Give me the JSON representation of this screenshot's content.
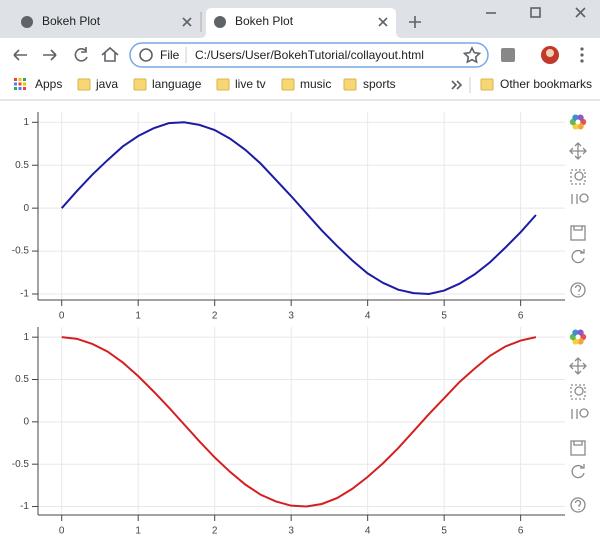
{
  "tabs": [
    {
      "title": "Bokeh Plot"
    },
    {
      "title": "Bokeh Plot"
    }
  ],
  "address_bar": {
    "scheme": "File",
    "url": "C:/Users/User/BokehTutorial/collayout.html"
  },
  "bookmarks": [
    "Apps",
    "java",
    "language",
    "live tv",
    "music",
    "sports"
  ],
  "other_bookmarks": "Other bookmarks",
  "chart_data": [
    {
      "type": "line",
      "x": [
        0,
        0.2,
        0.4,
        0.6,
        0.8,
        1.0,
        1.2,
        1.4,
        1.6,
        1.8,
        2.0,
        2.2,
        2.4,
        2.6,
        2.8,
        3.0,
        3.2,
        3.4,
        3.6,
        3.8,
        4.0,
        4.2,
        4.4,
        4.6,
        4.8,
        5.0,
        5.2,
        5.4,
        5.6,
        5.8,
        6.0,
        6.2
      ],
      "series": [
        {
          "color": "#1c1ca3",
          "values": [
            0,
            0.2,
            0.39,
            0.56,
            0.72,
            0.84,
            0.93,
            0.99,
            1.0,
            0.97,
            0.91,
            0.81,
            0.68,
            0.52,
            0.33,
            0.14,
            -0.06,
            -0.26,
            -0.44,
            -0.61,
            -0.76,
            -0.87,
            -0.95,
            -0.99,
            -1.0,
            -0.96,
            -0.88,
            -0.77,
            -0.63,
            -0.46,
            -0.28,
            -0.08
          ]
        }
      ],
      "xlim": [
        -0.31,
        6.58
      ],
      "ylim": [
        -1.07,
        1.12
      ],
      "xticks": [
        0,
        1,
        2,
        3,
        4,
        5,
        6
      ],
      "yticks": [
        -1,
        -0.5,
        0,
        0.5,
        1
      ],
      "grid": true
    },
    {
      "type": "line",
      "x": [
        0,
        0.2,
        0.4,
        0.6,
        0.8,
        1.0,
        1.2,
        1.4,
        1.6,
        1.8,
        2.0,
        2.2,
        2.4,
        2.6,
        2.8,
        3.0,
        3.2,
        3.4,
        3.6,
        3.8,
        4.0,
        4.2,
        4.4,
        4.6,
        4.8,
        5.0,
        5.2,
        5.4,
        5.6,
        5.8,
        6.0,
        6.2
      ],
      "series": [
        {
          "color": "#d42020",
          "values": [
            1,
            0.98,
            0.92,
            0.83,
            0.7,
            0.54,
            0.36,
            0.17,
            -0.03,
            -0.23,
            -0.42,
            -0.59,
            -0.74,
            -0.86,
            -0.94,
            -0.99,
            -1.0,
            -0.97,
            -0.9,
            -0.79,
            -0.65,
            -0.49,
            -0.31,
            -0.11,
            0.09,
            0.28,
            0.47,
            0.63,
            0.78,
            0.89,
            0.96,
            1.0
          ]
        }
      ],
      "xlim": [
        -0.31,
        6.58
      ],
      "ylim": [
        -1.1,
        1.12
      ],
      "xticks": [
        0,
        1,
        2,
        3,
        4,
        5,
        6
      ],
      "yticks": [
        -1,
        -0.5,
        0,
        0.5,
        1
      ],
      "grid": true
    }
  ]
}
